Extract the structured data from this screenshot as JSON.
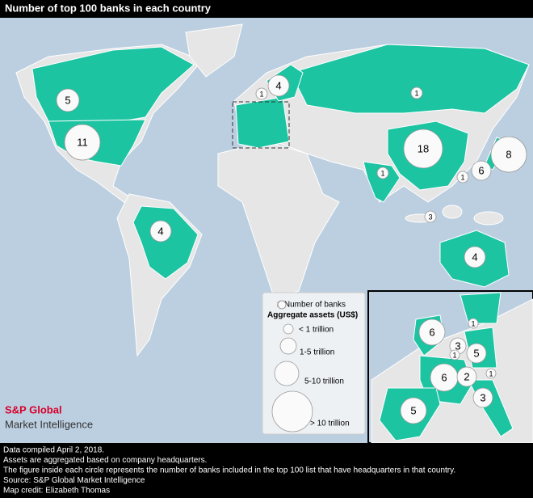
{
  "header": {
    "title": "Number of top 100 banks in each country"
  },
  "map": {
    "bubbles": [
      5,
      11,
      4,
      4,
      1,
      1,
      18,
      8,
      6,
      1,
      1,
      3,
      4
    ],
    "inset_bubbles": [
      6,
      3,
      1,
      1,
      5,
      6,
      2,
      1,
      3,
      5
    ]
  },
  "legend": {
    "title": "#-Number of banks",
    "subtitle": "Aggregate assets (US$)",
    "sizes": [
      "< 1 trillion",
      "1-5 trillion",
      "5-10 trillion",
      "> 10 trillion"
    ]
  },
  "brand": {
    "name": "S&P Global",
    "unit": "Market Intelligence"
  },
  "footer": {
    "lines": [
      "Data compiled April 2, 2018.",
      "Assets are aggregated based on company headquarters.",
      "The figure inside each circle represents the number of banks included in the top 100 list that have headquarters in that country.",
      "Source: S&P Global Market Intelligence",
      "Map credit: Elizabeth Thomas"
    ]
  }
}
